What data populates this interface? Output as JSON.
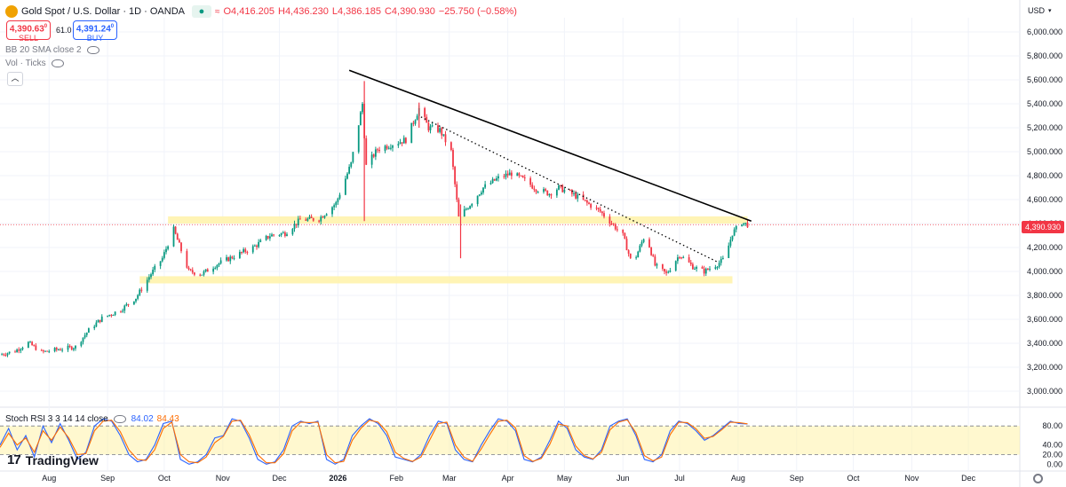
{
  "header": {
    "title": "Gold Spot / U.S. Dollar · 1D · OANDA",
    "ohlc_open": "O4,416.205",
    "ohlc_high": "H4,436.230",
    "ohlc_low": "L4,386.185",
    "ohlc_close": "C4,390.930",
    "change": "−25.750 (−0.58%)",
    "sell_price": "4,390.63",
    "sell_sup": "0",
    "sell_label": "SELL",
    "spread": "61.0",
    "buy_price": "4,391.24",
    "buy_sup": "0",
    "buy_label": "BUY",
    "indicator_bb": "BB 20 SMA close 2",
    "indicator_vol": "Vol · Ticks",
    "currency": "USD"
  },
  "stoch": {
    "label": "Stoch RSI 3 3 14 14 close",
    "k_value": "84.02",
    "d_value": "84.43"
  },
  "branding": {
    "logo_mark": "17",
    "logo_text": "TradingView"
  },
  "colors": {
    "up": "#089981",
    "down": "#f23645",
    "zone": "#fff2a8",
    "trendline": "#000000",
    "stoch_k": "#2962ff",
    "stoch_d": "#ff6d00",
    "grid": "#f0f3fa",
    "last_price_line": "#f23645"
  },
  "chart_data": [
    {
      "type": "candlestick",
      "title": "Gold Spot / U.S. Dollar · 1D · OANDA",
      "y_axis_ticks": [
        "3,000.000",
        "3,200.000",
        "3,400.000",
        "3,600.000",
        "3,800.000",
        "4,000.000",
        "4,200.000",
        "4,400.000",
        "4,600.000",
        "4,800.000",
        "5,000.000",
        "5,200.000",
        "5,400.000",
        "5,600.000",
        "5,800.000",
        "6,000.000"
      ],
      "ylim": [
        2900,
        6120
      ],
      "x_axis_ticks": [
        "Aug",
        "Sep",
        "Oct",
        "Nov",
        "Dec",
        "2026",
        "Feb",
        "Mar",
        "Apr",
        "May",
        "Jun",
        "Jul",
        "Aug",
        "Sep",
        "Oct",
        "Nov",
        "Dec"
      ],
      "last_price": 4390.93,
      "last_price_label": "4,390.930",
      "series_path": [
        [
          "2025-07-20",
          3305
        ],
        [
          "2025-07-28",
          3335
        ],
        [
          "2025-08-04",
          3405
        ],
        [
          "2025-08-11",
          3325
        ],
        [
          "2025-08-18",
          3345
        ],
        [
          "2025-08-29",
          3370
        ],
        [
          "2025-09-05",
          3510
        ],
        [
          "2025-09-12",
          3610
        ],
        [
          "2025-09-22",
          3680
        ],
        [
          "2025-09-30",
          3780
        ],
        [
          "2025-10-08",
          3980
        ],
        [
          "2025-10-14",
          4110
        ],
        [
          "2025-10-20",
          4350
        ],
        [
          "2025-10-28",
          4000
        ],
        [
          "2025-11-04",
          3980
        ],
        [
          "2025-11-12",
          4060
        ],
        [
          "2025-11-20",
          4120
        ],
        [
          "2025-12-01",
          4200
        ],
        [
          "2025-12-10",
          4300
        ],
        [
          "2025-12-18",
          4320
        ],
        [
          "2025-12-26",
          4430
        ],
        [
          "2026-01-05",
          4440
        ],
        [
          "2026-01-14",
          4570
        ],
        [
          "2026-01-22",
          4900
        ],
        [
          "2026-01-28",
          5400
        ],
        [
          "2026-01-30",
          4880
        ],
        [
          "2026-02-05",
          5020
        ],
        [
          "2026-02-12",
          5060
        ],
        [
          "2026-02-20",
          5100
        ],
        [
          "2026-02-27",
          5360
        ],
        [
          "2026-03-04",
          5200
        ],
        [
          "2026-03-10",
          5180
        ],
        [
          "2026-03-16",
          5000
        ],
        [
          "2026-03-20",
          4450
        ],
        [
          "2026-03-26",
          4560
        ],
        [
          "2026-04-02",
          4700
        ],
        [
          "2026-04-10",
          4780
        ],
        [
          "2026-04-17",
          4820
        ],
        [
          "2026-04-24",
          4760
        ],
        [
          "2026-04-30",
          4690
        ],
        [
          "2026-05-07",
          4650
        ],
        [
          "2026-05-12",
          4700
        ],
        [
          "2026-05-20",
          4640
        ],
        [
          "2026-05-28",
          4560
        ],
        [
          "2026-06-03",
          4500
        ],
        [
          "2026-06-08",
          4420
        ],
        [
          "2026-06-15",
          4300
        ],
        [
          "2026-06-20",
          4050
        ],
        [
          "2026-06-27",
          4320
        ],
        [
          "2026-07-02",
          4050
        ],
        [
          "2026-07-08",
          3980
        ],
        [
          "2026-07-15",
          4140
        ],
        [
          "2026-07-22",
          4040
        ],
        [
          "2026-07-28",
          4000
        ],
        [
          "2026-08-04",
          4060
        ],
        [
          "2026-08-08",
          4110
        ],
        [
          "2026-08-12",
          4320
        ],
        [
          "2026-08-17",
          4410
        ],
        [
          "2026-08-20",
          4391
        ]
      ],
      "spikes": [
        {
          "date": "2026-01-29",
          "high": 5590,
          "low": 4420
        },
        {
          "date": "2026-03-21",
          "high": 4560,
          "low": 4110
        },
        {
          "date": "2026-02-27",
          "high": 5410,
          "low": 5200
        }
      ],
      "zones": [
        {
          "x_from": "2025-10-17",
          "x_to": "2026-08-20",
          "y_from": 4400,
          "y_to": 4460
        },
        {
          "x_from": "2025-10-02",
          "x_to": "2026-08-12",
          "y_from": 3900,
          "y_to": 3960
        }
      ],
      "trendlines": [
        {
          "style": "solid",
          "from": [
            "2026-01-21",
            5680
          ],
          "to": [
            "2026-08-22",
            4420
          ]
        },
        {
          "style": "dotted",
          "from": [
            "2026-02-28",
            5290
          ],
          "to": [
            "2026-08-04",
            4080
          ]
        }
      ]
    },
    {
      "type": "line",
      "title": "Stoch RSI 3 3 14 14 close",
      "y_axis_ticks": [
        "0.00",
        "20.00",
        "40.00",
        "80.00"
      ],
      "ylim": [
        -5,
        110
      ],
      "bands": [
        20,
        80
      ],
      "series": [
        {
          "name": "%K",
          "values": [
            40,
            75,
            30,
            60,
            15,
            80,
            45,
            85,
            50,
            10,
            25,
            80,
            95,
            90,
            60,
            20,
            5,
            10,
            40,
            85,
            90,
            10,
            0,
            5,
            20,
            55,
            60,
            95,
            90,
            55,
            10,
            0,
            5,
            30,
            80,
            90,
            85,
            90,
            10,
            0,
            10,
            60,
            80,
            95,
            85,
            60,
            15,
            10,
            5,
            20,
            60,
            90,
            85,
            30,
            10,
            5,
            40,
            70,
            95,
            90,
            70,
            10,
            5,
            15,
            50,
            90,
            75,
            30,
            15,
            10,
            30,
            80,
            90,
            95,
            60,
            10,
            5,
            20,
            70,
            90,
            85,
            70,
            50,
            60,
            75,
            90,
            85,
            84
          ]
        },
        {
          "name": "%D",
          "values": [
            35,
            65,
            40,
            55,
            25,
            70,
            50,
            78,
            55,
            20,
            22,
            70,
            90,
            92,
            68,
            30,
            10,
            8,
            30,
            75,
            88,
            20,
            5,
            3,
            15,
            45,
            58,
            90,
            92,
            62,
            20,
            3,
            3,
            22,
            70,
            88,
            87,
            88,
            20,
            3,
            6,
            50,
            75,
            92,
            88,
            68,
            25,
            12,
            6,
            15,
            50,
            85,
            88,
            40,
            15,
            6,
            32,
            62,
            90,
            92,
            76,
            18,
            6,
            12,
            42,
            84,
            80,
            38,
            18,
            11,
            25,
            72,
            88,
            93,
            66,
            18,
            7,
            15,
            62,
            88,
            87,
            74,
            54,
            58,
            72,
            88,
            87,
            84.4
          ]
        }
      ]
    }
  ]
}
